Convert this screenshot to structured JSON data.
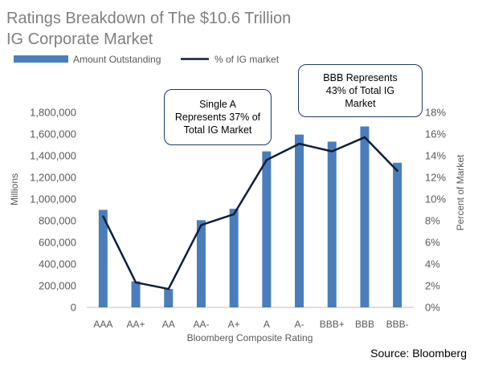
{
  "title_lines": [
    "Ratings Breakdown of The $10.6 Trillion",
    "IG Corporate Market"
  ],
  "source": "Source: Bloomberg",
  "callouts": [
    {
      "lines": [
        "Single A",
        "Represents 37% of",
        "Total IG Market"
      ]
    },
    {
      "lines": [
        "BBB Represents",
        "43% of Total IG",
        "Market"
      ]
    }
  ],
  "colors": {
    "bar": "#4a7ebb",
    "line": "#0d1f3c",
    "grid": "#d9d9d9",
    "callout_border": "#1f3864"
  },
  "chart_data": {
    "type": "bar",
    "xlabel": "Bloomberg Composite Rating",
    "ylabel": "Millions",
    "y2label": "Percent of Market",
    "categories": [
      "AAA",
      "AA+",
      "AA",
      "AA-",
      "A+",
      "A",
      "A-",
      "BBB+",
      "BBB",
      "BBB-"
    ],
    "ylim": [
      0,
      1800000
    ],
    "yticks": [
      "0",
      "200,000",
      "400,000",
      "600,000",
      "800,000",
      "1,000,000",
      "1,200,000",
      "1,400,000",
      "1,600,000",
      "1,800,000"
    ],
    "y2lim": [
      0,
      18
    ],
    "y2ticks": [
      "0%",
      "2%",
      "4%",
      "6%",
      "8%",
      "10%",
      "12%",
      "14%",
      "16%",
      "18%"
    ],
    "legend_position": "top-left",
    "grid": false,
    "series": [
      {
        "name": "Amount Outstanding",
        "type": "bar",
        "axis": "left",
        "values": [
          900000,
          240000,
          170000,
          805000,
          910000,
          1440000,
          1595000,
          1530000,
          1670000,
          1335000
        ]
      },
      {
        "name": "% of IG market",
        "type": "line",
        "axis": "right",
        "values": [
          8.4,
          2.3,
          1.7,
          7.6,
          8.6,
          13.6,
          15.1,
          14.4,
          15.7,
          12.6
        ]
      }
    ]
  }
}
